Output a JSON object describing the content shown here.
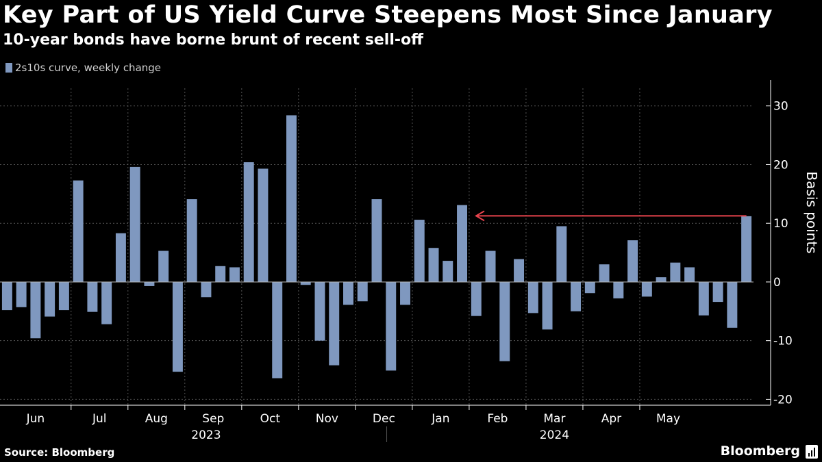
{
  "header": {
    "title": "Key Part of US Yield Curve Steepens Most Since January",
    "subtitle": "10-year bonds have borne brunt of recent sell-off"
  },
  "footer": {
    "source": "Source: Bloomberg",
    "brand": "Bloomberg",
    "brand_icon": "bloomberg-terminal-icon"
  },
  "colors": {
    "background": "#000000",
    "bar": "#7f98bf",
    "arrow": "#e8434d",
    "grid": "#555555",
    "text": "#ffffff"
  },
  "chart_data": {
    "type": "bar",
    "legend": "2s10s curve, weekly change",
    "legend_position": "top-left",
    "ylabel": "Basis points",
    "ylim": [
      -21,
      33
    ],
    "yticks": [
      30,
      20,
      10,
      0,
      -10,
      -20
    ],
    "grid": true,
    "months": [
      {
        "label": "Jun",
        "weeks": 4
      },
      {
        "label": "Jul",
        "weeks": 4
      },
      {
        "label": "Aug",
        "weeks": 4
      },
      {
        "label": "Sep",
        "weeks": 4
      },
      {
        "label": "Oct",
        "weeks": 4
      },
      {
        "label": "Nov",
        "weeks": 4
      },
      {
        "label": "Dec",
        "weeks": 4
      },
      {
        "label": "Jan",
        "weeks": 4
      },
      {
        "label": "Feb",
        "weeks": 4
      },
      {
        "label": "Mar",
        "weeks": 4
      },
      {
        "label": "Apr",
        "weeks": 4
      },
      {
        "label": "May",
        "weeks": 4
      }
    ],
    "years": [
      {
        "label": "2023",
        "start_month": 0,
        "end_month": 6
      },
      {
        "label": "2024",
        "start_month": 7,
        "end_month": 11
      }
    ],
    "values": [
      -4.8,
      -4.3,
      -9.6,
      -5.9,
      -4.8,
      17.3,
      -5.1,
      -7.2,
      8.3,
      19.6,
      -0.7,
      5.3,
      -15.3,
      14.1,
      -2.6,
      2.7,
      2.5,
      20.4,
      19.3,
      -16.4,
      28.4,
      -0.5,
      -10.0,
      -14.2,
      -3.9,
      -3.3,
      14.1,
      -15.1,
      -3.9,
      10.6,
      5.8,
      3.6,
      13.1,
      -5.8,
      5.3,
      -13.5,
      3.9,
      -5.3,
      -8.1,
      9.5,
      -5.0,
      -1.9,
      3.0,
      -2.8,
      7.1,
      -2.5,
      0.8,
      3.3,
      2.5,
      -5.7,
      -3.4,
      -7.8,
      11.2
    ],
    "annotation": {
      "type": "arrow",
      "value": 11.2,
      "from_bar": 52,
      "to_bar": 32
    }
  }
}
